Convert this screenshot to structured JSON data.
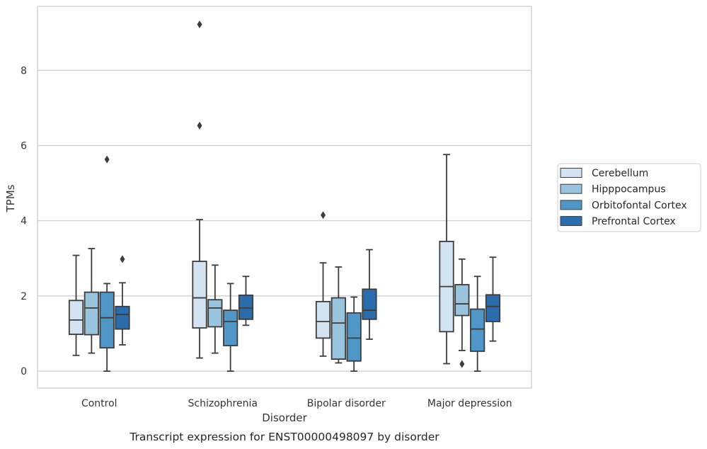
{
  "chart_data": {
    "type": "box",
    "caption": "Transcript expression for ENST00000498097 by disorder",
    "xlabel": "Disorder",
    "ylabel": "TPMs",
    "ylim": [
      -0.45,
      9.7
    ],
    "yticks": [
      0,
      2,
      4,
      6,
      8
    ],
    "grid": "horizontal",
    "legend_position": "right",
    "categories": [
      "Control",
      "Schizophrenia",
      "Bipolar disorder",
      "Major depression"
    ],
    "series": [
      {
        "name": "Cerebellum",
        "color": "#d3e3f2",
        "boxes": [
          {
            "whislo": 0.42,
            "q1": 0.98,
            "med": 1.36,
            "q3": 1.88,
            "whishi": 3.08,
            "fliers": []
          },
          {
            "whislo": 0.35,
            "q1": 1.15,
            "med": 1.95,
            "q3": 2.92,
            "whishi": 4.03,
            "fliers": [
              6.53,
              9.22
            ]
          },
          {
            "whislo": 0.4,
            "q1": 0.88,
            "med": 1.32,
            "q3": 1.85,
            "whishi": 2.88,
            "fliers": [
              4.15
            ]
          },
          {
            "whislo": 0.2,
            "q1": 1.05,
            "med": 2.25,
            "q3": 3.45,
            "whishi": 5.76,
            "fliers": []
          }
        ]
      },
      {
        "name": "Hipppocampus",
        "color": "#9ac4de",
        "boxes": [
          {
            "whislo": 0.48,
            "q1": 0.97,
            "med": 1.68,
            "q3": 2.1,
            "whishi": 3.26,
            "fliers": []
          },
          {
            "whislo": 0.48,
            "q1": 1.18,
            "med": 1.68,
            "q3": 1.9,
            "whishi": 2.82,
            "fliers": []
          },
          {
            "whislo": 0.22,
            "q1": 0.32,
            "med": 1.28,
            "q3": 1.95,
            "whishi": 2.77,
            "fliers": []
          },
          {
            "whislo": 0.55,
            "q1": 1.48,
            "med": 1.79,
            "q3": 2.3,
            "whishi": 2.98,
            "fliers": [
              0.19
            ]
          }
        ]
      },
      {
        "name": "Orbitofontal Cortex",
        "color": "#5096c6",
        "boxes": [
          {
            "whislo": 0.0,
            "q1": 0.62,
            "med": 1.42,
            "q3": 2.1,
            "whishi": 2.33,
            "fliers": [
              5.63
            ]
          },
          {
            "whislo": 0.0,
            "q1": 0.68,
            "med": 1.32,
            "q3": 1.62,
            "whishi": 2.33,
            "fliers": []
          },
          {
            "whislo": 0.0,
            "q1": 0.27,
            "med": 0.88,
            "q3": 1.55,
            "whishi": 1.97,
            "fliers": []
          },
          {
            "whislo": 0.0,
            "q1": 0.53,
            "med": 1.12,
            "q3": 1.65,
            "whishi": 2.52,
            "fliers": []
          }
        ]
      },
      {
        "name": "Prefrontal Cortex",
        "color": "#2a6cac",
        "boxes": [
          {
            "whislo": 0.7,
            "q1": 1.12,
            "med": 1.51,
            "q3": 1.72,
            "whishi": 2.35,
            "fliers": [
              2.98
            ]
          },
          {
            "whislo": 1.22,
            "q1": 1.38,
            "med": 1.68,
            "q3": 2.02,
            "whishi": 2.52,
            "fliers": []
          },
          {
            "whislo": 0.85,
            "q1": 1.38,
            "med": 1.62,
            "q3": 2.18,
            "whishi": 3.23,
            "fliers": []
          },
          {
            "whislo": 0.8,
            "q1": 1.32,
            "med": 1.72,
            "q3": 2.03,
            "whishi": 3.03,
            "fliers": []
          }
        ]
      }
    ]
  }
}
